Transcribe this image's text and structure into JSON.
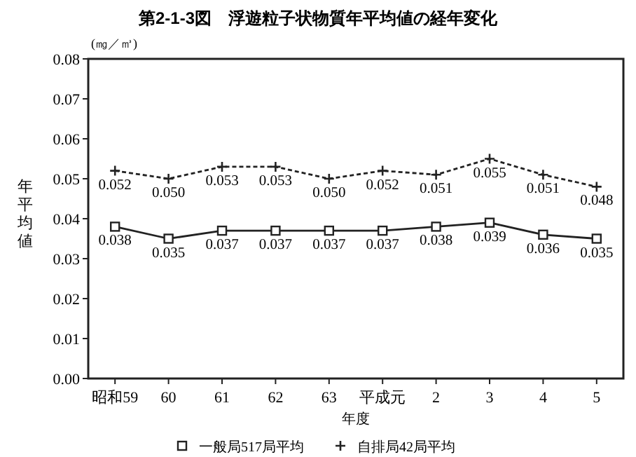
{
  "chart_data": {
    "type": "line",
    "title": "第2-1-3図　浮遊粒子状物質年平均値の経年変化",
    "xlabel": "年度",
    "ylabel": "年平均値",
    "annotations": [
      "(㎎／㎥)"
    ],
    "categories": [
      "昭和59",
      "60",
      "61",
      "62",
      "63",
      "平成元",
      "2",
      "3",
      "4",
      "5"
    ],
    "ylim": [
      0,
      0.08
    ],
    "yticks": [
      {
        "value": 0,
        "label": "0.00"
      },
      {
        "value": 0.01,
        "label": "0.01"
      },
      {
        "value": 0.02,
        "label": "0.02"
      },
      {
        "value": 0.03,
        "label": "0.03"
      },
      {
        "value": 0.04,
        "label": "0.04"
      },
      {
        "value": 0.05,
        "label": "0.05"
      },
      {
        "value": 0.06,
        "label": "0.06"
      },
      {
        "value": 0.07,
        "label": "0.07"
      },
      {
        "value": 0.08,
        "label": "0.08"
      }
    ],
    "grid": false,
    "legend": "bottom",
    "series": [
      {
        "name": "一般局517局平均",
        "color": "#222222",
        "marker": "square",
        "line_style": "solid",
        "values": [
          0.038,
          0.035,
          0.037,
          0.037,
          0.037,
          0.037,
          0.038,
          0.039,
          0.036,
          0.035
        ],
        "value_labels": [
          "0.038",
          "0.035",
          "0.037",
          "0.037",
          "0.037",
          "0.037",
          "0.038",
          "0.039",
          "0.036",
          "0.035"
        ]
      },
      {
        "name": "自排局42局平均",
        "color": "#222222",
        "marker": "cross",
        "line_style": "dashed",
        "values": [
          0.052,
          0.05,
          0.053,
          0.053,
          0.05,
          0.052,
          0.051,
          0.055,
          0.051,
          0.048
        ],
        "value_labels": [
          "0.052",
          "0.050",
          "0.053",
          "0.053",
          "0.050",
          "0.052",
          "0.051",
          "0.055",
          "0.051",
          "0.048"
        ]
      }
    ]
  }
}
